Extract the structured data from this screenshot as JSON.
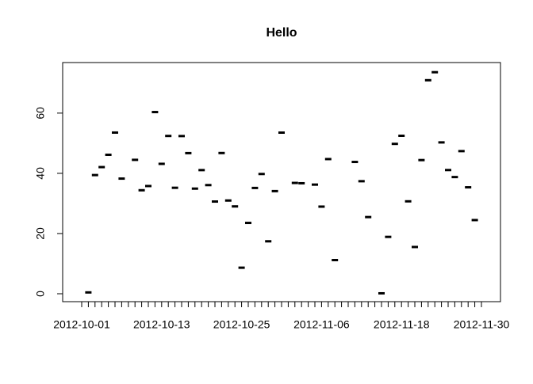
{
  "chart_data": {
    "type": "box",
    "title": "Hello",
    "categories": [
      "2012-10-01",
      null,
      null,
      null,
      null,
      null,
      null,
      null,
      null,
      null,
      null,
      null,
      "2012-10-13",
      null,
      null,
      null,
      null,
      null,
      null,
      null,
      null,
      null,
      null,
      null,
      "2012-10-25",
      null,
      null,
      null,
      null,
      null,
      null,
      null,
      null,
      null,
      null,
      null,
      "2012-11-06",
      null,
      null,
      null,
      null,
      null,
      null,
      null,
      null,
      null,
      null,
      null,
      "2012-11-18",
      null,
      null,
      null,
      null,
      null,
      null,
      null,
      null,
      null,
      null,
      null,
      "2012-11-30"
    ],
    "values": [
      null,
      0.44,
      39.42,
      42.07,
      46.16,
      53.54,
      38.25,
      null,
      44.48,
      34.38,
      35.78,
      60.35,
      43.15,
      52.42,
      35.2,
      52.38,
      46.71,
      34.92,
      41.07,
      36.09,
      30.63,
      46.74,
      30.97,
      29.01,
      8.65,
      23.53,
      35.14,
      39.78,
      17.42,
      34.09,
      53.52,
      null,
      36.81,
      36.7,
      null,
      36.25,
      28.94,
      44.73,
      11.18,
      null,
      null,
      43.78,
      37.38,
      25.47,
      null,
      0.14,
      18.89,
      49.79,
      52.47,
      30.7,
      15.53,
      44.4,
      70.93,
      73.59,
      50.27,
      41.09,
      38.76,
      47.38,
      35.36,
      24.47,
      null
    ],
    "color": "#000000",
    "ylim": [
      -2.63,
      76.8
    ],
    "yticks": [
      0,
      20,
      40,
      60
    ]
  }
}
